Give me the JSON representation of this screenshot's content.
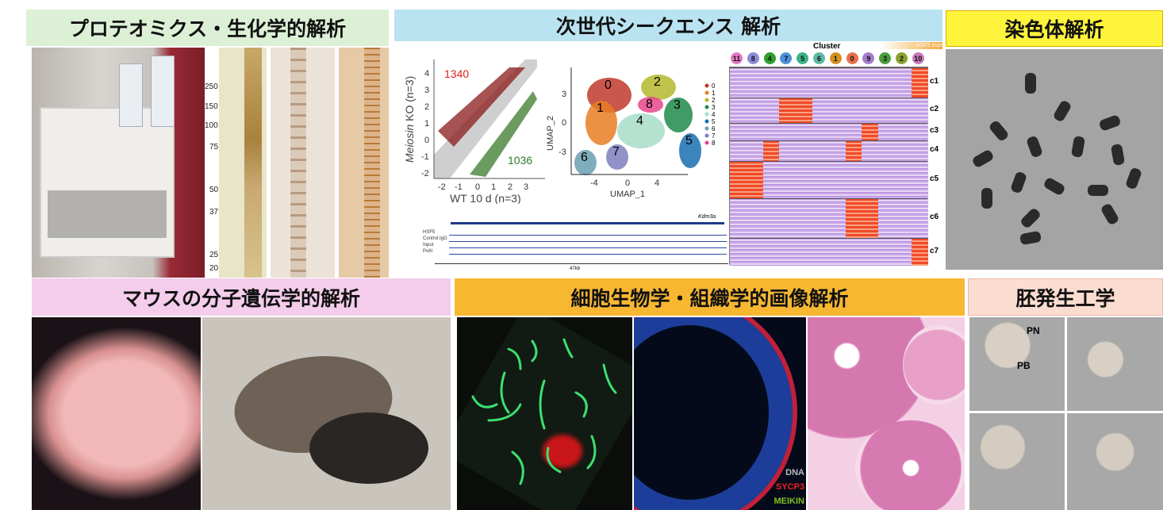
{
  "headers": {
    "proteomics": "プロテオミクス・生化学的解析",
    "ngs": "次世代シークエンス 解析",
    "chromosome": "染色体解析",
    "mouse": "マウスの分子遺伝学的解析",
    "cell_bio": "細胞生物学・組織学的画像解析",
    "embryo": "胚発生工学"
  },
  "colors": {
    "proteomics": "#dcf0d6",
    "ngs": "#b9e3f1",
    "chromosome": "#fff43c",
    "mouse": "#f3cdeb",
    "cell_bio": "#f7b731",
    "embryo": "#fbdcd0"
  },
  "gel": {
    "markers": [
      "250",
      "150",
      "100",
      "75",
      "50",
      "37",
      "25",
      "20"
    ]
  },
  "scatter": {
    "up_count": "1340",
    "down_count": "1036",
    "ylabel_italic": "Meiosin",
    "ylabel_rest": " KO (n=3)",
    "xlabel": "WT 10 d (n=3)",
    "xticks": [
      "-2",
      "-1",
      "0",
      "1",
      "2",
      "3"
    ],
    "yticks": [
      "4",
      "3",
      "2",
      "1",
      "0",
      "-1",
      "-2"
    ]
  },
  "umap": {
    "xlabel": "UMAP_1",
    "ylabel": "UMAP_2",
    "xticks": [
      "-4",
      "0",
      "4"
    ],
    "yticks": [
      "3",
      "0",
      "-3"
    ],
    "clusters": [
      {
        "id": "0",
        "color": "#c0392b"
      },
      {
        "id": "1",
        "color": "#e67e22"
      },
      {
        "id": "2",
        "color": "#b5b82c"
      },
      {
        "id": "3",
        "color": "#1e8a4a"
      },
      {
        "id": "4",
        "color": "#a8dcc8"
      },
      {
        "id": "5",
        "color": "#1a6fb0"
      },
      {
        "id": "6",
        "color": "#6a9fb0"
      },
      {
        "id": "7",
        "color": "#7f7fbf"
      },
      {
        "id": "8",
        "color": "#e8458b"
      }
    ]
  },
  "tracks": {
    "gene": "Kdm3a",
    "labels": [
      "HSF5",
      "Control IgG",
      "Input",
      "PolII"
    ],
    "scale": "47kb"
  },
  "heatmap": {
    "title": "Cluster",
    "legend_partial": "HSF5 expr",
    "columns": [
      {
        "id": "11",
        "color": "#e377c2"
      },
      {
        "id": "8",
        "color": "#8c8cd9"
      },
      {
        "id": "4",
        "color": "#2ca02c"
      },
      {
        "id": "7",
        "color": "#4a90d9"
      },
      {
        "id": "5",
        "color": "#3cb38a"
      },
      {
        "id": "6",
        "color": "#5fb8a8"
      },
      {
        "id": "1",
        "color": "#d4901e"
      },
      {
        "id": "0",
        "color": "#e8704a"
      },
      {
        "id": "9",
        "color": "#a67bc9"
      },
      {
        "id": "3",
        "color": "#4a9d3a"
      },
      {
        "id": "2",
        "color": "#8aa12e"
      },
      {
        "id": "10",
        "color": "#c47ab8"
      }
    ],
    "rows": [
      "c1",
      "c2",
      "c3",
      "c4",
      "c5",
      "c6",
      "c7"
    ]
  },
  "immuno": {
    "dna": "DNA",
    "sycp3": "SYCP3",
    "meikin": "MEIKIN"
  },
  "embryo": {
    "pn": "PN",
    "pb": "PB"
  }
}
